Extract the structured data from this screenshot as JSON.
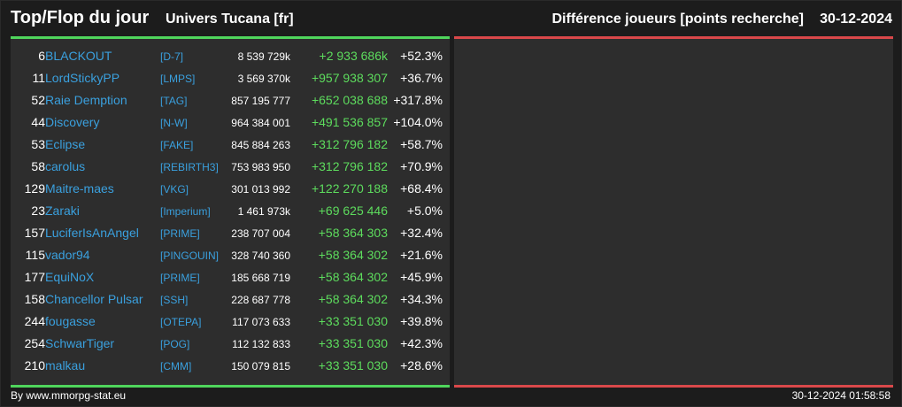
{
  "header": {
    "title": "Top/Flop du jour",
    "universe": "Univers Tucana [fr]",
    "subtitle": "Différence joueurs [points recherche]",
    "date": "30-12-2024"
  },
  "rows": [
    {
      "rank": "6",
      "name": "BLACKOUT",
      "alliance": "[D-7]",
      "points": "8 539 729k",
      "diff": "+2 933 686k",
      "pct": "+52.3%"
    },
    {
      "rank": "11",
      "name": "LordStickyPP",
      "alliance": "[LMPS]",
      "points": "3 569 370k",
      "diff": "+957 938 307",
      "pct": "+36.7%"
    },
    {
      "rank": "52",
      "name": "Raie Demption",
      "alliance": "[TAG]",
      "points": "857 195 777",
      "diff": "+652 038 688",
      "pct": "+317.8%"
    },
    {
      "rank": "44",
      "name": "Discovery",
      "alliance": "[N-W]",
      "points": "964 384 001",
      "diff": "+491 536 857",
      "pct": "+104.0%"
    },
    {
      "rank": "53",
      "name": "Eclipse",
      "alliance": "[FAKE]",
      "points": "845 884 263",
      "diff": "+312 796 182",
      "pct": "+58.7%"
    },
    {
      "rank": "58",
      "name": "carolus",
      "alliance": "[REBIRTH3]",
      "points": "753 983 950",
      "diff": "+312 796 182",
      "pct": "+70.9%"
    },
    {
      "rank": "129",
      "name": "Maitre-maes",
      "alliance": "[VKG]",
      "points": "301 013 992",
      "diff": "+122 270 188",
      "pct": "+68.4%"
    },
    {
      "rank": "23",
      "name": "Zaraki",
      "alliance": "[Imperium]",
      "points": "1 461 973k",
      "diff": "+69 625 446",
      "pct": "+5.0%"
    },
    {
      "rank": "157",
      "name": "LuciferIsAnAngel",
      "alliance": "[PRIME]",
      "points": "238 707 004",
      "diff": "+58 364 303",
      "pct": "+32.4%"
    },
    {
      "rank": "115",
      "name": "vador94",
      "alliance": "[PINGOUIN]",
      "points": "328 740 360",
      "diff": "+58 364 302",
      "pct": "+21.6%"
    },
    {
      "rank": "177",
      "name": "EquiNoX",
      "alliance": "[PRIME]",
      "points": "185 668 719",
      "diff": "+58 364 302",
      "pct": "+45.9%"
    },
    {
      "rank": "158",
      "name": "Chancellor Pulsar",
      "alliance": "[SSH]",
      "points": "228 687 778",
      "diff": "+58 364 302",
      "pct": "+34.3%"
    },
    {
      "rank": "244",
      "name": "fougasse",
      "alliance": "[OTEPA]",
      "points": "117 073 633",
      "diff": "+33 351 030",
      "pct": "+39.8%"
    },
    {
      "rank": "254",
      "name": "SchwarTiger",
      "alliance": "[POG]",
      "points": "112 132 833",
      "diff": "+33 351 030",
      "pct": "+42.3%"
    },
    {
      "rank": "210",
      "name": "malkau",
      "alliance": "[CMM]",
      "points": "150 079 815",
      "diff": "+33 351 030",
      "pct": "+28.6%"
    }
  ],
  "footer": {
    "credit": "By www.mmorpg-stat.eu",
    "timestamp": "30-12-2024 01:58:58"
  },
  "colors": {
    "top_accent": "#4fd55c",
    "flop_accent": "#d9484a",
    "name_link": "#3aa0de",
    "gain": "#5ddc5d"
  }
}
